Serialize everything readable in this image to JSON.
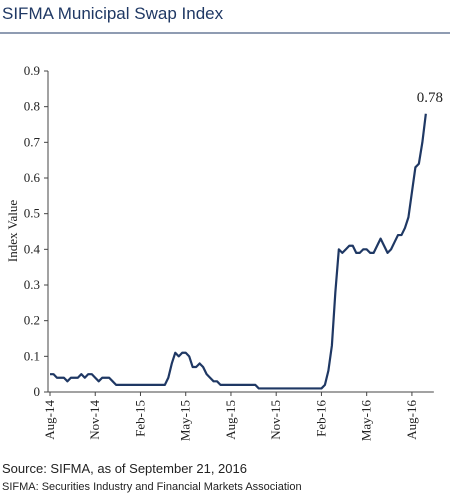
{
  "chart_data": {
    "type": "line",
    "title": "SIFMA Municipal Swap Index",
    "y_label": "Index Value",
    "end_label": "0.78",
    "source": "Source: SIFMA, as of September 21, 2016",
    "note": "SIFMA: Securities Industry and Financial Markets Association",
    "categories": [
      "Aug-14",
      null,
      null,
      null,
      null,
      null,
      null,
      null,
      null,
      null,
      null,
      null,
      null,
      "Nov-14",
      null,
      null,
      null,
      null,
      null,
      null,
      null,
      null,
      null,
      null,
      null,
      null,
      "Feb-15",
      null,
      null,
      null,
      null,
      null,
      null,
      null,
      null,
      null,
      null,
      null,
      null,
      "May-15",
      null,
      null,
      null,
      null,
      null,
      null,
      null,
      null,
      null,
      null,
      null,
      null,
      "Aug-15",
      null,
      null,
      null,
      null,
      null,
      null,
      null,
      null,
      null,
      null,
      null,
      null,
      "Nov-15",
      null,
      null,
      null,
      null,
      null,
      null,
      null,
      null,
      null,
      null,
      null,
      null,
      "Feb-16",
      null,
      null,
      null,
      null,
      null,
      null,
      null,
      null,
      null,
      null,
      null,
      null,
      "May-16",
      null,
      null,
      null,
      null,
      null,
      null,
      null,
      null,
      null,
      null,
      null,
      null,
      "Aug-16",
      null,
      null,
      null,
      null
    ],
    "series": [
      {
        "color": "#1f3864",
        "values": [
          0.05,
          0.05,
          0.04,
          0.04,
          0.04,
          0.03,
          0.04,
          0.04,
          0.04,
          0.05,
          0.04,
          0.05,
          0.05,
          0.04,
          0.03,
          0.04,
          0.04,
          0.04,
          0.03,
          0.02,
          0.02,
          0.02,
          0.02,
          0.02,
          0.02,
          0.02,
          0.02,
          0.02,
          0.02,
          0.02,
          0.02,
          0.02,
          0.02,
          0.02,
          0.04,
          0.08,
          0.11,
          0.1,
          0.11,
          0.11,
          0.1,
          0.07,
          0.07,
          0.08,
          0.07,
          0.05,
          0.04,
          0.03,
          0.03,
          0.02,
          0.02,
          0.02,
          0.02,
          0.02,
          0.02,
          0.02,
          0.02,
          0.02,
          0.02,
          0.02,
          0.01,
          0.01,
          0.01,
          0.01,
          0.01,
          0.01,
          0.01,
          0.01,
          0.01,
          0.01,
          0.01,
          0.01,
          0.01,
          0.01,
          0.01,
          0.01,
          0.01,
          0.01,
          0.01,
          0.02,
          0.06,
          0.13,
          0.28,
          0.4,
          0.39,
          0.4,
          0.41,
          0.41,
          0.39,
          0.39,
          0.4,
          0.4,
          0.39,
          0.39,
          0.41,
          0.43,
          0.41,
          0.39,
          0.4,
          0.42,
          0.44,
          0.44,
          0.46,
          0.49,
          0.56,
          0.63,
          0.64,
          0.7,
          0.78
        ]
      }
    ],
    "ylim": [
      0,
      0.9
    ],
    "yticks": [
      0,
      0.1,
      0.2,
      0.3,
      0.4,
      0.5,
      0.6,
      0.7,
      0.8,
      0.9
    ]
  }
}
